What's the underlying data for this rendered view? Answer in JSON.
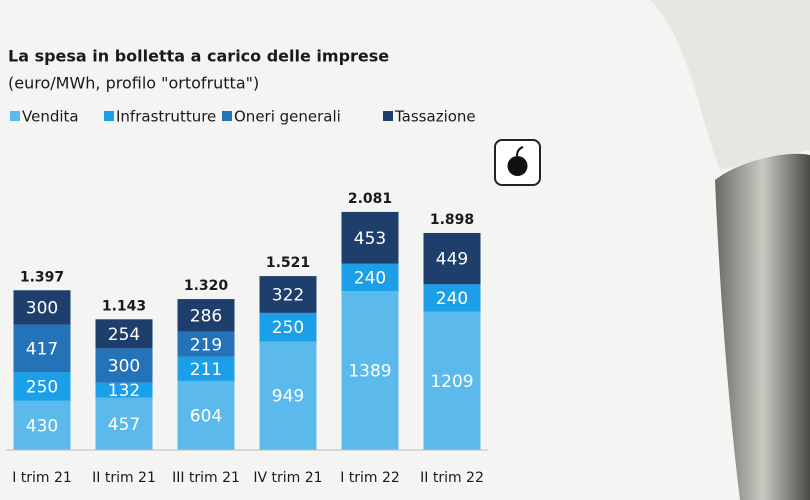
{
  "chart_data": {
    "type": "stacked_bar",
    "title": "La spesa in bolletta a carico delle imprese",
    "subtitle": "(euro/MWh, profilo \"ortofrutta\")",
    "categories": [
      "I trim 21",
      "II trim 21",
      "III trim 21",
      "IV trim 21",
      "I trim 22",
      "II trim 22"
    ],
    "series": [
      {
        "name": "Vendita",
        "color": "#5cb9ec",
        "values": [
          430,
          457,
          604,
          949,
          1389,
          1209
        ]
      },
      {
        "name": "Infrastrutture",
        "color": "#1a9fe8",
        "values": [
          250,
          132,
          211,
          250,
          240,
          240
        ]
      },
      {
        "name": "Oneri generali",
        "color": "#2472b8",
        "values": [
          417,
          300,
          219,
          null,
          null,
          null
        ]
      },
      {
        "name": "Tassazione",
        "color": "#1e3f6c",
        "values": [
          300,
          254,
          286,
          322,
          453,
          449
        ]
      }
    ],
    "totals": {
      "values": [
        1397,
        1143,
        1320,
        1521,
        2081,
        1898
      ],
      "value_labels": [
        "1.397",
        "1.143",
        "1.320",
        "1.521",
        "2.081",
        "1.898"
      ]
    },
    "ylim": [
      0,
      2300
    ]
  }
}
